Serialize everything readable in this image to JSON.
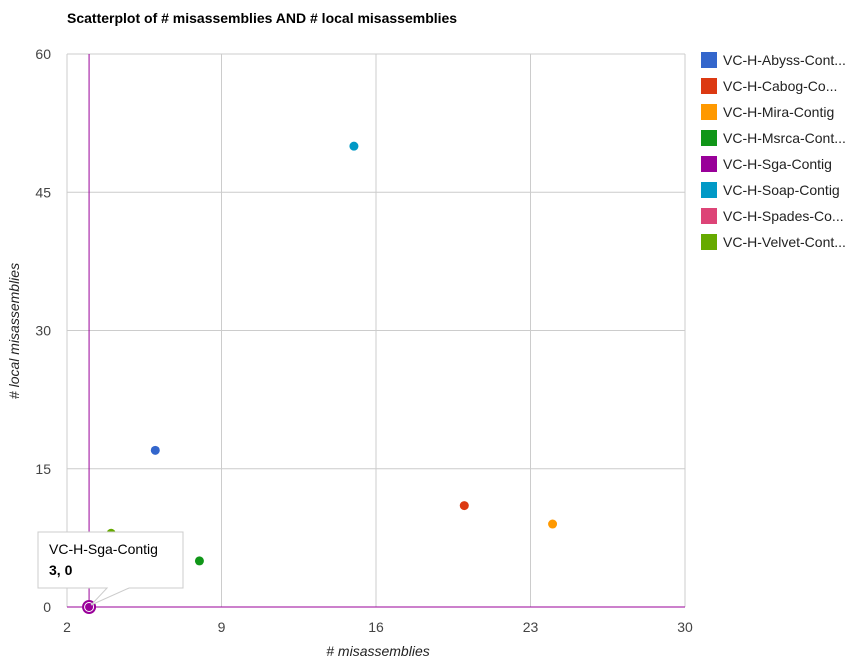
{
  "chart_data": {
    "type": "scatter",
    "title": "Scatterplot of # misassemblies AND # local misassemblies",
    "xlabel": "# misassemblies",
    "ylabel": "# local misassemblies",
    "xlim": [
      2,
      30
    ],
    "ylim": [
      0,
      60
    ],
    "x_ticks": [
      "2",
      "9",
      "16",
      "23",
      "30"
    ],
    "y_ticks": [
      "0",
      "15",
      "30",
      "45",
      "60"
    ],
    "grid": true,
    "legend_position": "right",
    "series": [
      {
        "name": "VC-H-Abyss-Cont...",
        "color": "#3366cc",
        "x": 6,
        "y": 17
      },
      {
        "name": "VC-H-Cabog-Co...",
        "color": "#dc3912",
        "x": 20,
        "y": 11
      },
      {
        "name": "VC-H-Mira-Contig",
        "color": "#ff9900",
        "x": 24,
        "y": 9
      },
      {
        "name": "VC-H-Msrca-Cont...",
        "color": "#109618",
        "x": 8,
        "y": 5
      },
      {
        "name": "VC-H-Sga-Contig",
        "color": "#990099",
        "x": 3,
        "y": 0
      },
      {
        "name": "VC-H-Soap-Contig",
        "color": "#0099c6",
        "x": 15,
        "y": 50
      },
      {
        "name": "VC-H-Spades-Co...",
        "color": "#dd4477",
        "x": 4,
        "y": 3
      },
      {
        "name": "VC-H-Velvet-Cont...",
        "color": "#66aa00",
        "x": 4,
        "y": 8
      }
    ],
    "highlighted_series": "VC-H-Sga-Contig",
    "tooltip": {
      "name": "VC-H-Sga-Contig",
      "value": "3, 0"
    }
  }
}
